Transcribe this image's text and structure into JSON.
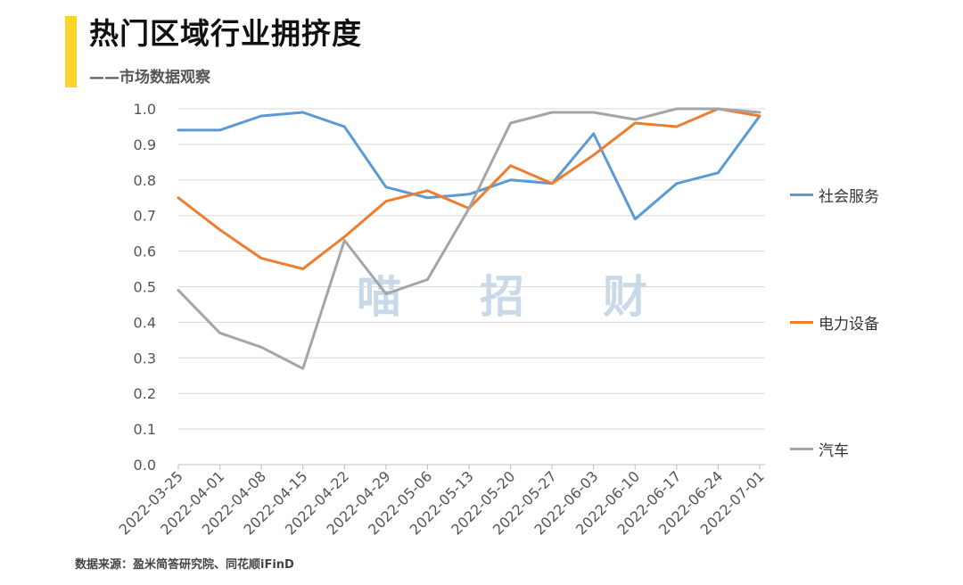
{
  "header": {
    "title": "热门区域行业拥挤度",
    "subtitle": "——市场数据观察"
  },
  "source": "数据来源：盈米简答研究院、同花顺iFinD",
  "watermark": [
    "喵",
    "招",
    "财"
  ],
  "colors": {
    "accent": "#FFD32A",
    "series": [
      "#5B9BD5",
      "#ED7D31",
      "#A5A5A5"
    ]
  },
  "chart_data": {
    "type": "line",
    "x": [
      "2022-03-25",
      "2022-04-01",
      "2022-04-08",
      "2022-04-15",
      "2022-04-22",
      "2022-04-29",
      "2022-05-06",
      "2022-05-13",
      "2022-05-20",
      "2022-05-27",
      "2022-06-03",
      "2022-06-10",
      "2022-06-17",
      "2022-06-24",
      "2022-07-01"
    ],
    "series": [
      {
        "name": "社会服务",
        "color": "#5B9BD5",
        "values": [
          0.94,
          0.94,
          0.98,
          0.99,
          0.95,
          0.78,
          0.75,
          0.76,
          0.8,
          0.79,
          0.93,
          0.69,
          0.79,
          0.82,
          0.98
        ]
      },
      {
        "name": "电力设备",
        "color": "#ED7D31",
        "values": [
          0.75,
          0.66,
          0.58,
          0.55,
          0.64,
          0.74,
          0.77,
          0.72,
          0.84,
          0.79,
          0.87,
          0.96,
          0.95,
          1.0,
          0.98
        ]
      },
      {
        "name": "汽车",
        "color": "#A5A5A5",
        "values": [
          0.49,
          0.37,
          0.33,
          0.27,
          0.63,
          0.48,
          0.52,
          0.72,
          0.96,
          0.99,
          0.99,
          0.97,
          1.0,
          1.0,
          0.99
        ]
      }
    ],
    "ylim": [
      0,
      1.0
    ],
    "yticks": [
      "0.0",
      "0.1",
      "0.2",
      "0.3",
      "0.4",
      "0.5",
      "0.6",
      "0.7",
      "0.8",
      "0.9",
      "1.0"
    ],
    "grid": true,
    "legend": "right"
  }
}
